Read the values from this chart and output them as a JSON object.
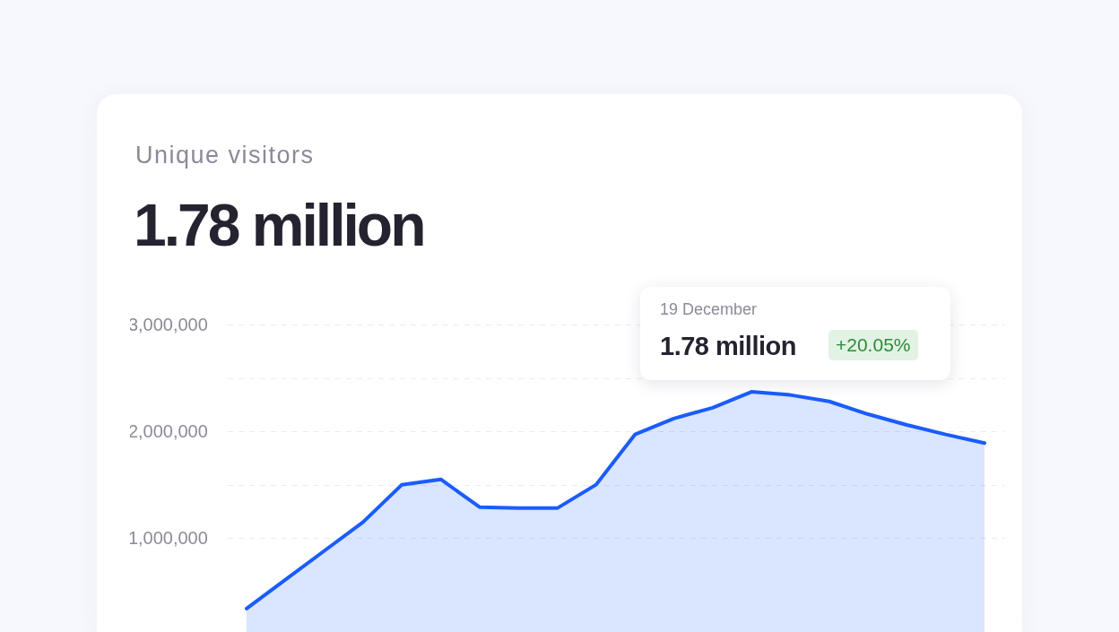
{
  "chart_data": {
    "type": "area",
    "title": "Unique visitors",
    "subtitle": "1.78 million",
    "categories": [
      null,
      null,
      null,
      null,
      null,
      null,
      null,
      null,
      null,
      null,
      null,
      null,
      null,
      null,
      null,
      null,
      null,
      null,
      null,
      null
    ],
    "series": [
      {
        "color": "#1a5cff",
        "values": [
          340000,
          610000,
          880000,
          1150000,
          1500000,
          1550000,
          1290000,
          1280000,
          1280000,
          1500000,
          1970000,
          2120000,
          2220000,
          2370000,
          2340000,
          2280000,
          2160000,
          2060000,
          1970000,
          1890000
        ]
      }
    ],
    "ylim": [
      120000,
      3000000
    ],
    "yticks": [
      {
        "value": 1000000,
        "label": "1,000,000"
      },
      {
        "value": 1500000,
        "label": null
      },
      {
        "value": 2000000,
        "label": "2,000,000"
      },
      {
        "value": 2500000,
        "label": null
      },
      {
        "value": 3000000,
        "label": "3,000,000"
      }
    ],
    "grid": "y",
    "tick_labels": "y",
    "annotations": [
      "19 December",
      "1.78 million",
      "+20.05%"
    ]
  }
}
